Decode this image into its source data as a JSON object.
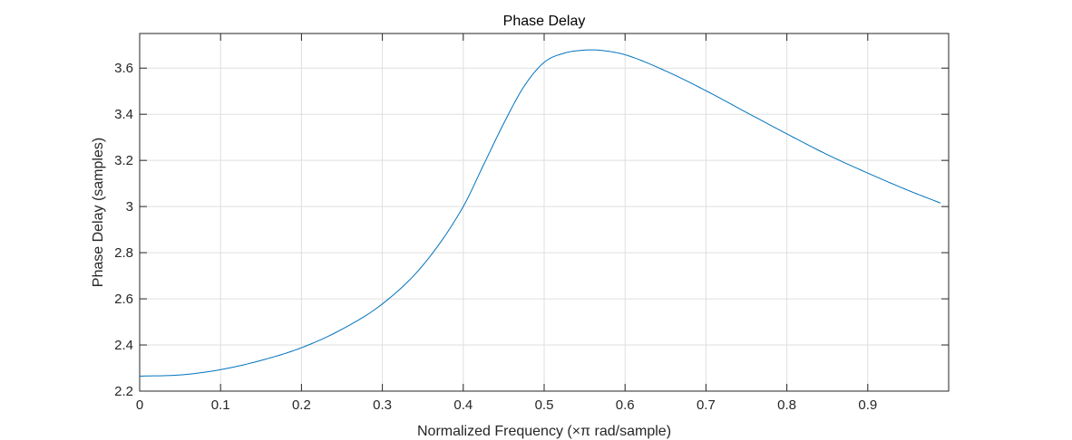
{
  "chart_data": {
    "type": "line",
    "title": "Phase Delay",
    "xlabel": "Normalized Frequency (×π rad/sample)",
    "ylabel": "Phase Delay (samples)",
    "xlim": [
      0,
      1
    ],
    "ylim": [
      2.2,
      3.75
    ],
    "x_ticks": [
      0,
      0.1,
      0.2,
      0.3,
      0.4,
      0.5,
      0.6,
      0.7,
      0.8,
      0.9
    ],
    "x_tick_labels": [
      "0",
      "0.1",
      "0.2",
      "0.3",
      "0.4",
      "0.5",
      "0.6",
      "0.7",
      "0.8",
      "0.9"
    ],
    "y_ticks": [
      2.2,
      2.4,
      2.6,
      2.8,
      3.0,
      3.2,
      3.4,
      3.6
    ],
    "y_tick_labels": [
      "2.2",
      "2.4",
      "2.6",
      "2.8",
      "3",
      "3.2",
      "3.4",
      "3.6"
    ],
    "grid": true,
    "line_color": "#0072bd",
    "series": [
      {
        "x": [
          0,
          0.05,
          0.1,
          0.15,
          0.2,
          0.25,
          0.3,
          0.35,
          0.4,
          0.425,
          0.45,
          0.475,
          0.5,
          0.525,
          0.55,
          0.56,
          0.575,
          0.6,
          0.65,
          0.7,
          0.75,
          0.8,
          0.85,
          0.9,
          0.95,
          0.99
        ],
        "y": [
          2.265,
          2.27,
          2.293,
          2.333,
          2.388,
          2.468,
          2.578,
          2.745,
          3.0,
          3.18,
          3.36,
          3.52,
          3.625,
          3.665,
          3.678,
          3.679,
          3.675,
          3.658,
          3.588,
          3.502,
          3.408,
          3.315,
          3.225,
          3.145,
          3.07,
          3.015
        ]
      }
    ]
  }
}
